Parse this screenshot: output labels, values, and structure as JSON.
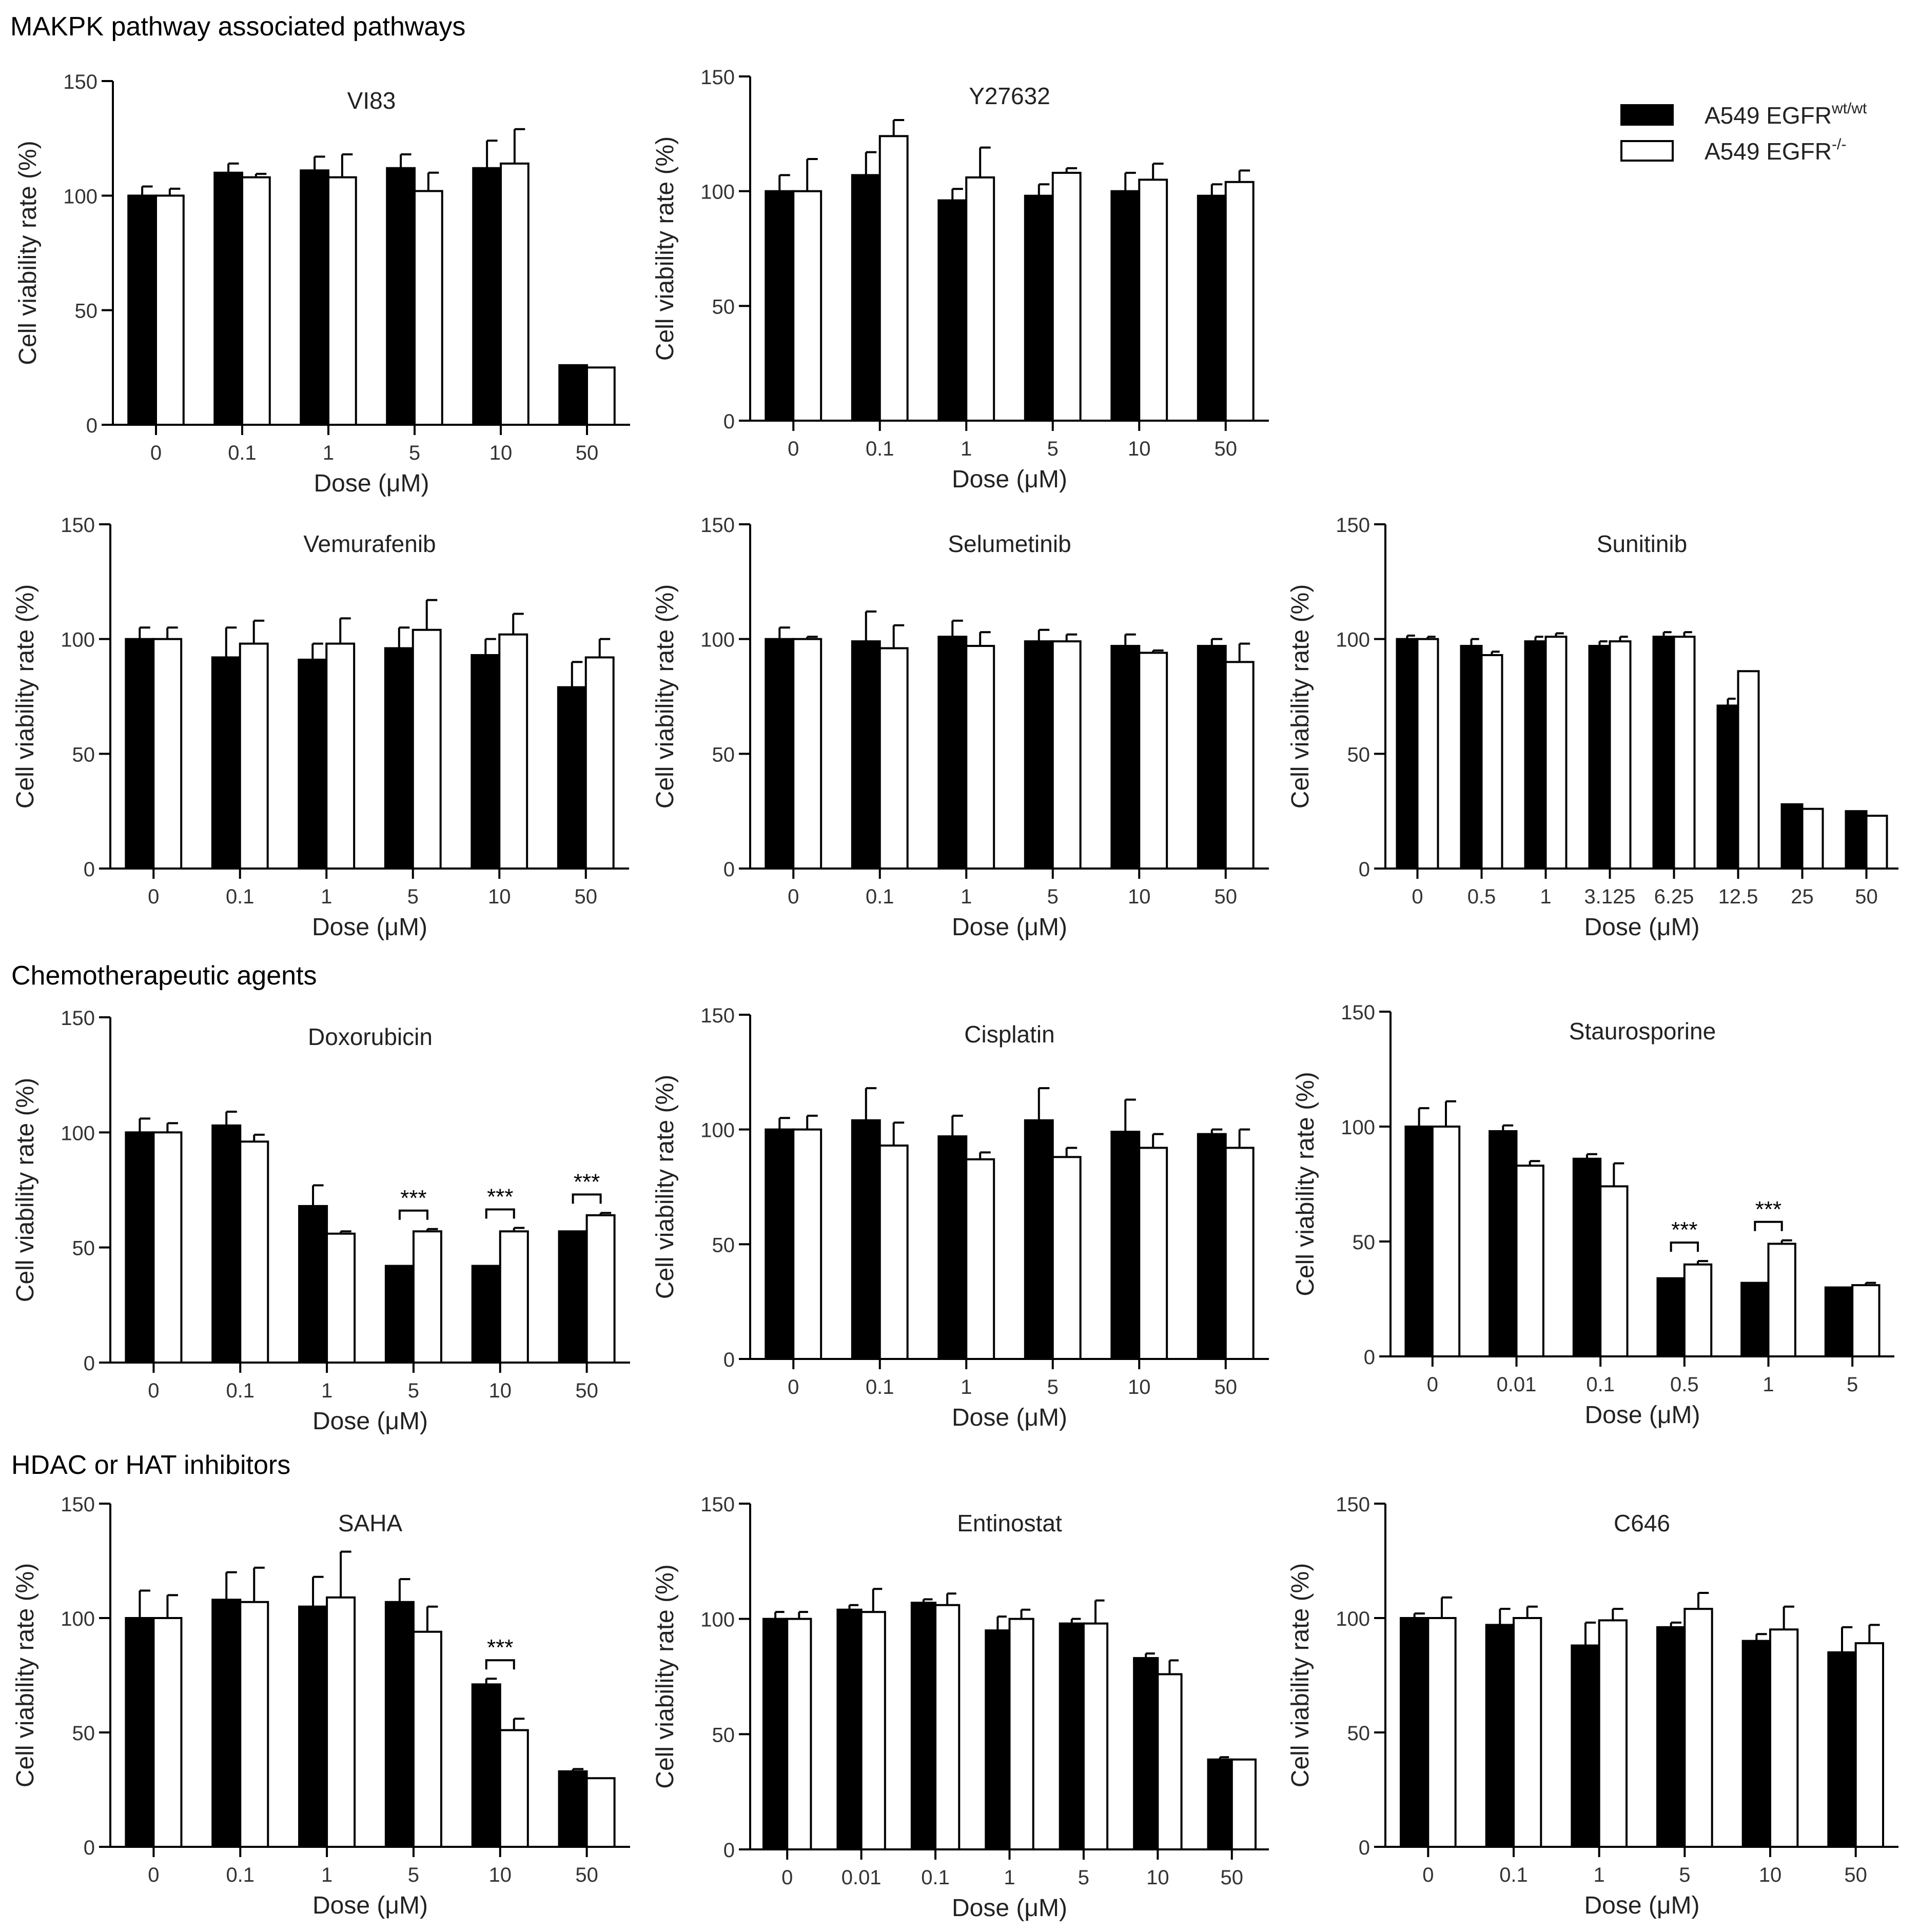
{
  "sections": {
    "mapk": "MAKPK pathway associated pathways",
    "chemo": "Chemotherapeutic agents",
    "hdac": "HDAC or HAT inhibitors"
  },
  "legend": [
    {
      "label": "A549 EGFR",
      "sup": "wt/wt",
      "color": "#000000"
    },
    {
      "label": "A549 EGFR",
      "sup": "-/-",
      "color": "#ffffff"
    }
  ],
  "chart_data": [
    {
      "type": "bar",
      "title": "VI83",
      "xlabel": "Dose (μM)",
      "ylabel": "Cell viability rate (%)",
      "ylim": [
        0,
        150
      ],
      "yticks": [
        0,
        50,
        100,
        150
      ],
      "categories": [
        "0",
        "0.1",
        "1",
        "5",
        "10",
        "50"
      ],
      "series": [
        {
          "name": "A549 EGFR wt/wt",
          "values": [
            100,
            110,
            111,
            112,
            112,
            26
          ],
          "errors": [
            4,
            4,
            6,
            6,
            12,
            0.5
          ]
        },
        {
          "name": "A549 EGFR -/-",
          "values": [
            100,
            108,
            108,
            102,
            114,
            25
          ],
          "errors": [
            3,
            1.5,
            10,
            8,
            15,
            0.3
          ]
        }
      ],
      "significance": []
    },
    {
      "type": "bar",
      "title": "Y27632",
      "xlabel": "Dose (μM)",
      "ylabel": "Cell viability rate (%)",
      "ylim": [
        0,
        150
      ],
      "yticks": [
        0,
        50,
        100,
        150
      ],
      "categories": [
        "0",
        "0.1",
        "1",
        "5",
        "10",
        "50"
      ],
      "series": [
        {
          "name": "A549 EGFR wt/wt",
          "values": [
            100,
            107,
            96,
            98,
            100,
            98
          ],
          "errors": [
            7,
            10,
            5,
            5,
            8,
            5
          ]
        },
        {
          "name": "A549 EGFR -/-",
          "values": [
            100,
            124,
            106,
            108,
            105,
            104
          ],
          "errors": [
            14,
            7,
            13,
            2,
            7,
            5
          ]
        }
      ],
      "significance": []
    },
    {
      "type": "bar",
      "title": "Vemurafenib",
      "xlabel": "Dose (μM)",
      "ylabel": "Cell viability rate (%)",
      "ylim": [
        0,
        150
      ],
      "yticks": [
        0,
        50,
        100,
        150
      ],
      "categories": [
        "0",
        "0.1",
        "1",
        "5",
        "10",
        "50"
      ],
      "series": [
        {
          "name": "A549 EGFR wt/wt",
          "values": [
            100,
            92,
            91,
            96,
            93,
            79
          ],
          "errors": [
            5,
            13,
            7,
            9,
            7,
            11
          ]
        },
        {
          "name": "A549 EGFR -/-",
          "values": [
            100,
            98,
            98,
            104,
            102,
            92
          ],
          "errors": [
            5,
            10,
            11,
            13,
            9,
            8
          ]
        }
      ],
      "significance": []
    },
    {
      "type": "bar",
      "title": "Selumetinib",
      "xlabel": "Dose (μM)",
      "ylabel": "Cell viability rate (%)",
      "ylim": [
        0,
        150
      ],
      "yticks": [
        0,
        50,
        100,
        150
      ],
      "categories": [
        "0",
        "0.1",
        "1",
        "5",
        "10",
        "50"
      ],
      "series": [
        {
          "name": "A549 EGFR wt/wt",
          "values": [
            100,
            99,
            101,
            99,
            97,
            97
          ],
          "errors": [
            5,
            13,
            7,
            5,
            5,
            3
          ]
        },
        {
          "name": "A549 EGFR -/-",
          "values": [
            100,
            96,
            97,
            99,
            94,
            90
          ],
          "errors": [
            1,
            10,
            6,
            3,
            1,
            8
          ]
        }
      ],
      "significance": []
    },
    {
      "type": "bar",
      "title": "Sunitinib",
      "xlabel": "Dose (μM)",
      "ylabel": "Cell viability rate (%)",
      "ylim": [
        0,
        150
      ],
      "yticks": [
        0,
        50,
        100,
        150
      ],
      "categories": [
        "0",
        "0.5",
        "1",
        "3.125",
        "6.25",
        "12.5",
        "25",
        "50"
      ],
      "series": [
        {
          "name": "A549 EGFR wt/wt",
          "values": [
            100,
            97,
            99,
            97,
            101,
            71,
            28,
            25
          ],
          "errors": [
            1.5,
            3,
            2,
            2,
            2,
            3,
            0.5,
            0.5
          ]
        },
        {
          "name": "A549 EGFR -/-",
          "values": [
            100,
            93,
            101,
            99,
            101,
            86,
            26,
            23
          ],
          "errors": [
            1,
            1.5,
            1.5,
            2,
            2,
            0.5,
            0.3,
            0.3
          ]
        }
      ],
      "significance": []
    },
    {
      "type": "bar",
      "title": "Doxorubicin",
      "xlabel": "Dose (μM)",
      "ylabel": "Cell viability rate (%)",
      "ylim": [
        0,
        150
      ],
      "yticks": [
        0,
        50,
        100,
        150
      ],
      "categories": [
        "0",
        "0.1",
        "1",
        "5",
        "10",
        "50"
      ],
      "series": [
        {
          "name": "A549 EGFR wt/wt",
          "values": [
            100,
            103,
            68,
            42,
            42,
            57
          ],
          "errors": [
            6,
            6,
            9,
            0.5,
            0.5,
            0.5
          ]
        },
        {
          "name": "A549 EGFR -/-",
          "values": [
            100,
            96,
            56,
            57,
            57,
            64
          ],
          "errors": [
            4,
            3,
            1,
            1,
            1.5,
            1
          ]
        }
      ],
      "significance": [
        {
          "index": 3,
          "label": "***"
        },
        {
          "index": 4,
          "label": "***"
        },
        {
          "index": 5,
          "label": "***"
        }
      ]
    },
    {
      "type": "bar",
      "title": "Cisplatin",
      "xlabel": "Dose (μM)",
      "ylabel": "Cell viability rate (%)",
      "ylim": [
        0,
        150
      ],
      "yticks": [
        0,
        50,
        100,
        150
      ],
      "categories": [
        "0",
        "0.1",
        "1",
        "5",
        "10",
        "50"
      ],
      "series": [
        {
          "name": "A549 EGFR wt/wt",
          "values": [
            100,
            104,
            97,
            104,
            99,
            98
          ],
          "errors": [
            5,
            14,
            9,
            14,
            14,
            2
          ]
        },
        {
          "name": "A549 EGFR -/-",
          "values": [
            100,
            93,
            87,
            88,
            92,
            92
          ],
          "errors": [
            6,
            10,
            3,
            4,
            6,
            8
          ]
        }
      ],
      "significance": []
    },
    {
      "type": "bar",
      "title": "Staurosporine",
      "xlabel": "Dose (μM)",
      "ylabel": "Cell viability rate (%)",
      "ylim": [
        0,
        150
      ],
      "yticks": [
        0,
        50,
        100,
        150
      ],
      "categories": [
        "0",
        "0.01",
        "0.1",
        "0.5",
        "1",
        "5"
      ],
      "series": [
        {
          "name": "A549 EGFR wt/wt",
          "values": [
            100,
            98,
            86,
            34,
            32,
            30
          ],
          "errors": [
            8,
            2.5,
            2,
            0.5,
            0.5,
            0.5
          ]
        },
        {
          "name": "A549 EGFR -/-",
          "values": [
            100,
            83,
            74,
            40,
            49,
            31
          ],
          "errors": [
            11,
            2,
            10,
            1.5,
            1.5,
            1
          ]
        }
      ],
      "significance": [
        {
          "index": 3,
          "label": "***"
        },
        {
          "index": 4,
          "label": "***"
        }
      ]
    },
    {
      "type": "bar",
      "title": "SAHA",
      "xlabel": "Dose (μM)",
      "ylabel": "Cell viability rate (%)",
      "ylim": [
        0,
        150
      ],
      "yticks": [
        0,
        50,
        100,
        150
      ],
      "categories": [
        "0",
        "0.1",
        "1",
        "5",
        "10",
        "50"
      ],
      "series": [
        {
          "name": "A549 EGFR wt/wt",
          "values": [
            100,
            108,
            105,
            107,
            71,
            33
          ],
          "errors": [
            12,
            12,
            13,
            10,
            2.5,
            1
          ]
        },
        {
          "name": "A549 EGFR -/-",
          "values": [
            100,
            107,
            109,
            94,
            51,
            30
          ],
          "errors": [
            10,
            15,
            20,
            11,
            5,
            0.3
          ]
        }
      ],
      "significance": [
        {
          "index": 4,
          "label": "***"
        }
      ]
    },
    {
      "type": "bar",
      "title": "Entinostat",
      "xlabel": "Dose (μM)",
      "ylabel": "Cell viability rate (%)",
      "ylim": [
        0,
        150
      ],
      "yticks": [
        0,
        50,
        100,
        150
      ],
      "categories": [
        "0",
        "0.01",
        "0.1",
        "1",
        "5",
        "10",
        "50"
      ],
      "series": [
        {
          "name": "A549 EGFR wt/wt",
          "values": [
            100,
            104,
            107,
            95,
            98,
            83,
            39
          ],
          "errors": [
            3,
            2,
            1.5,
            6,
            2,
            2,
            1
          ]
        },
        {
          "name": "A549 EGFR -/-",
          "values": [
            100,
            103,
            106,
            100,
            98,
            76,
            39
          ],
          "errors": [
            3,
            10,
            5,
            4,
            10,
            6,
            0.3
          ]
        }
      ],
      "significance": []
    },
    {
      "type": "bar",
      "title": "C646",
      "xlabel": "Dose (μM)",
      "ylabel": "Cell viability rate (%)",
      "ylim": [
        0,
        150
      ],
      "yticks": [
        0,
        50,
        100,
        150
      ],
      "categories": [
        "0",
        "0.1",
        "1",
        "5",
        "10",
        "50"
      ],
      "series": [
        {
          "name": "A549 EGFR wt/wt",
          "values": [
            100,
            97,
            88,
            96,
            90,
            85
          ],
          "errors": [
            2,
            7,
            10,
            2,
            3,
            11
          ]
        },
        {
          "name": "A549 EGFR -/-",
          "values": [
            100,
            100,
            99,
            104,
            95,
            89
          ],
          "errors": [
            9,
            5,
            5,
            7,
            10,
            8
          ]
        }
      ],
      "significance": []
    }
  ]
}
